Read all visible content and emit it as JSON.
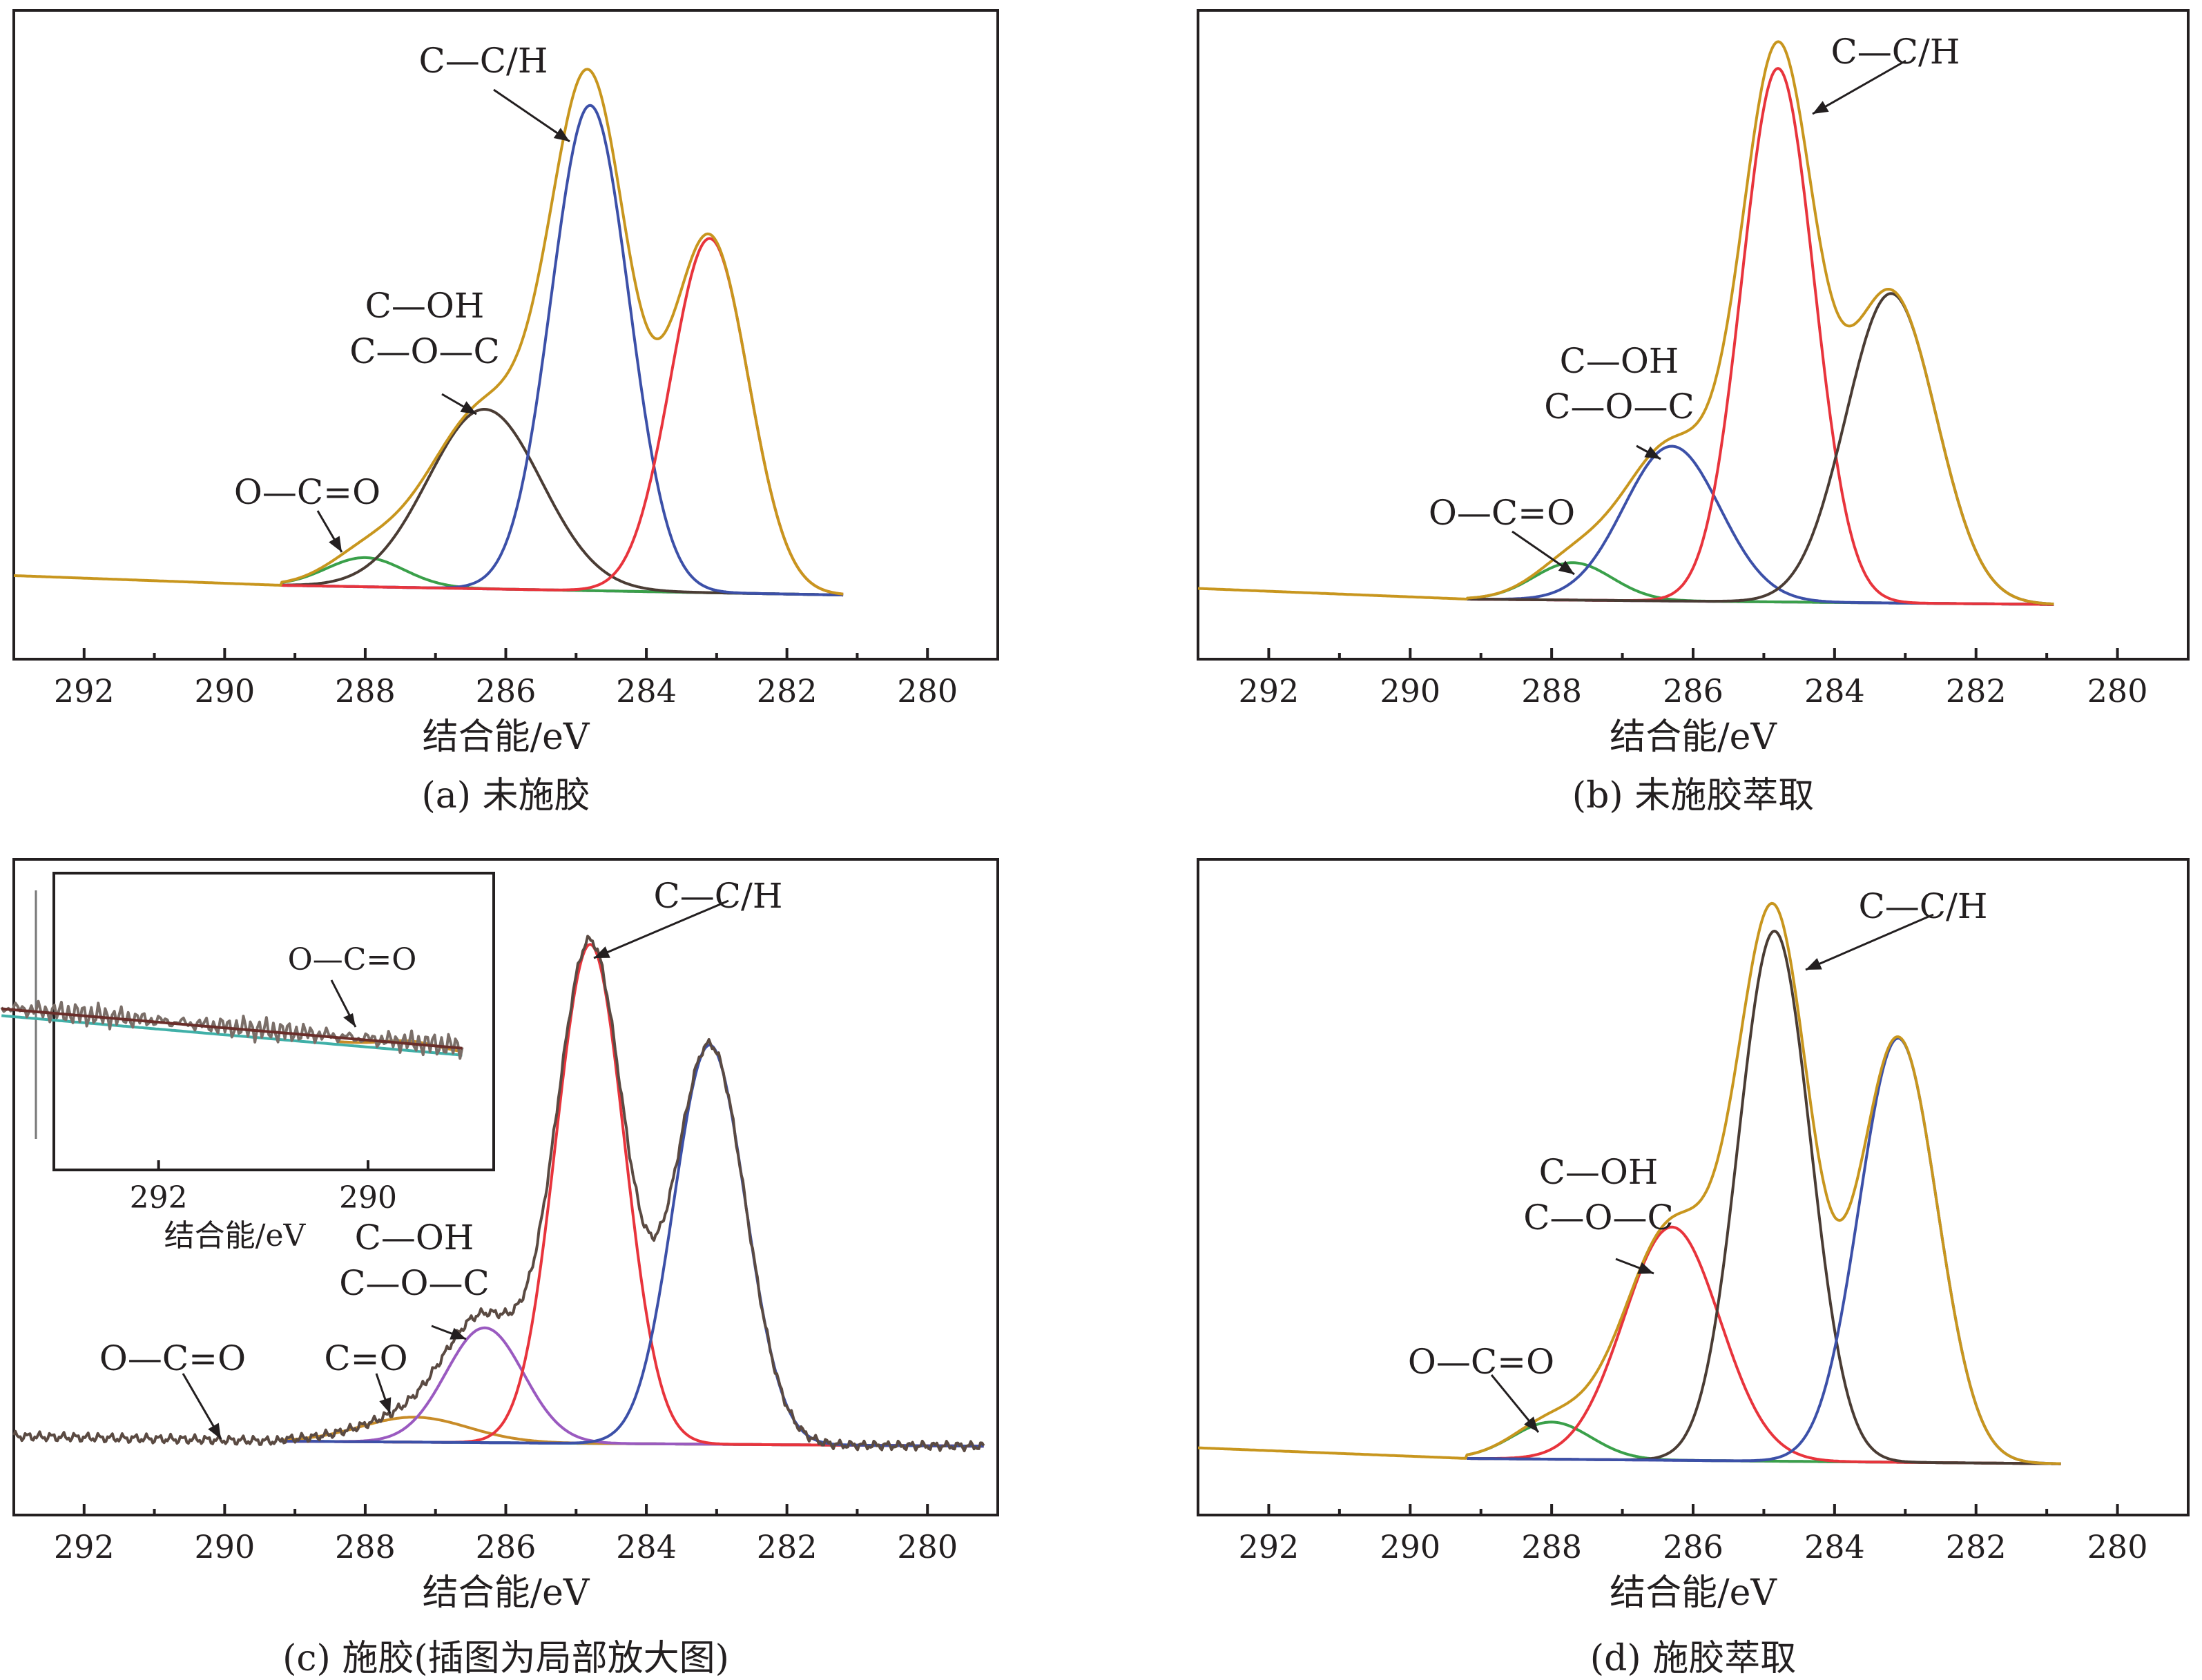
{
  "colors": {
    "envelope": "#c8961e",
    "blue": "#3c50a8",
    "red": "#e8343c",
    "dark": "#4a3c34",
    "green": "#3aa04a",
    "purple": "#9a5ac0",
    "cyan": "#40b0a8",
    "orange": "#c88c28",
    "raw": "#5a4a42"
  },
  "chart_data": [
    {
      "id": "a",
      "type": "line",
      "caption": "(a) 未施胶",
      "xlabel": "结合能/eV",
      "ylabel": "",
      "xlim": [
        293,
        279
      ],
      "x_ticks": [
        "292",
        "290",
        "288",
        "286",
        "284",
        "282",
        "280"
      ],
      "baseline": {
        "x": [
          293,
          289.2,
          281.2
        ],
        "y": [
          0.02,
          0.0,
          -0.02
        ]
      },
      "components": [
        {
          "center": 288.0,
          "height": 0.06,
          "fwhm": 1.3,
          "color": "green"
        },
        {
          "center": 286.3,
          "height": 0.37,
          "fwhm": 1.9,
          "color": "dark"
        },
        {
          "center": 284.8,
          "height": 1.0,
          "fwhm": 1.3,
          "color": "blue"
        },
        {
          "center": 283.1,
          "height": 0.73,
          "fwhm": 1.3,
          "color": "red"
        }
      ],
      "annotations": [
        {
          "lines": [
            "C—C/H"
          ],
          "target_x": 284.8
        },
        {
          "lines": [
            "C—OH",
            "C—O—C"
          ],
          "target_x": 286.3
        },
        {
          "lines": [
            "O—C=O"
          ],
          "target_x": 288.0
        }
      ]
    },
    {
      "id": "b",
      "type": "line",
      "caption": "(b) 未施胶萃取",
      "xlabel": "结合能/eV",
      "ylabel": "",
      "xlim": [
        293,
        279
      ],
      "x_ticks": [
        "292",
        "290",
        "288",
        "286",
        "284",
        "282",
        "280"
      ],
      "baseline": {
        "x": [
          293,
          289.2,
          280.9
        ],
        "y": [
          0.02,
          0.0,
          -0.01
        ]
      },
      "components": [
        {
          "center": 287.7,
          "height": 0.07,
          "fwhm": 1.3,
          "color": "green"
        },
        {
          "center": 286.3,
          "height": 0.29,
          "fwhm": 1.6,
          "color": "blue"
        },
        {
          "center": 284.8,
          "height": 1.0,
          "fwhm": 1.2,
          "color": "red"
        },
        {
          "center": 283.2,
          "height": 0.58,
          "fwhm": 1.5,
          "color": "dark"
        }
      ],
      "annotations": [
        {
          "lines": [
            "C—C/H"
          ],
          "target_x": 284.8
        },
        {
          "lines": [
            "C—OH",
            "C—O—C"
          ],
          "target_x": 286.3
        },
        {
          "lines": [
            "O—C=O"
          ],
          "target_x": 287.7
        }
      ]
    },
    {
      "id": "c",
      "type": "line",
      "caption": "(c) 施胶(插图为局部放大图)",
      "xlabel": "结合能/eV",
      "ylabel": "",
      "xlim": [
        293,
        279
      ],
      "x_ticks": [
        "292",
        "290",
        "288",
        "286",
        "284",
        "282",
        "280"
      ],
      "baseline": {
        "x": [
          293,
          289.2,
          279.2
        ],
        "y": [
          0.01,
          0.0,
          -0.01
        ]
      },
      "components": [
        {
          "center": 290.0,
          "height": 0.005,
          "fwhm": 1.4,
          "color": "cyan"
        },
        {
          "center": 287.3,
          "height": 0.05,
          "fwhm": 1.8,
          "color": "orange"
        },
        {
          "center": 286.3,
          "height": 0.23,
          "fwhm": 1.3,
          "color": "purple"
        },
        {
          "center": 284.8,
          "height": 1.0,
          "fwhm": 1.15,
          "color": "red"
        },
        {
          "center": 283.1,
          "height": 0.8,
          "fwhm": 1.2,
          "color": "blue"
        }
      ],
      "annotations": [
        {
          "lines": [
            "C—C/H"
          ],
          "target_x": 284.8
        },
        {
          "lines": [
            "C—OH",
            "C—O—C"
          ],
          "target_x": 286.3
        },
        {
          "lines": [
            "C=O"
          ],
          "target_x": 287.3
        },
        {
          "lines": [
            "O—C=O"
          ],
          "target_x": 290.0
        }
      ],
      "inset": {
        "xlabel": "结合能/eV",
        "x_ticks": [
          "292",
          "290"
        ],
        "xlim": [
          293.0,
          288.8
        ],
        "annotation": "O—C=O"
      }
    },
    {
      "id": "d",
      "type": "line",
      "caption": "(d) 施胶萃取",
      "xlabel": "结合能/eV",
      "ylabel": "",
      "xlim": [
        293,
        279
      ],
      "x_ticks": [
        "292",
        "290",
        "288",
        "286",
        "284",
        "282",
        "280"
      ],
      "baseline": {
        "x": [
          293,
          289.2,
          280.8
        ],
        "y": [
          0.02,
          0.0,
          -0.01
        ]
      },
      "components": [
        {
          "center": 288.0,
          "height": 0.07,
          "fwhm": 1.3,
          "color": "green"
        },
        {
          "center": 286.3,
          "height": 0.44,
          "fwhm": 1.6,
          "color": "red"
        },
        {
          "center": 284.85,
          "height": 1.0,
          "fwhm": 1.2,
          "color": "dark"
        },
        {
          "center": 283.1,
          "height": 0.8,
          "fwhm": 1.3,
          "color": "blue"
        }
      ],
      "annotations": [
        {
          "lines": [
            "C—C/H"
          ],
          "target_x": 284.85
        },
        {
          "lines": [
            "C—OH",
            "C—O—C"
          ],
          "target_x": 286.3
        },
        {
          "lines": [
            "O—C=O"
          ],
          "target_x": 288.0
        }
      ]
    }
  ]
}
